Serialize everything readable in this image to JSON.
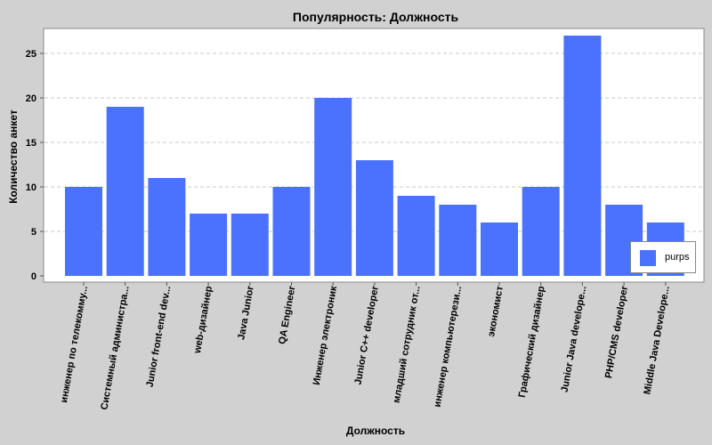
{
  "chart_data": {
    "type": "bar",
    "title": "Популярность: Должность",
    "xlabel": "Должность",
    "ylabel": "Количество анкет",
    "ylim": [
      0,
      27.8
    ],
    "yticks": [
      0,
      5,
      10,
      15,
      20,
      25
    ],
    "grid": true,
    "legend_position": "bottom-right",
    "bar_color": "#4a72ff",
    "categories": [
      "инженер по телекомму...",
      "Системный администра...",
      "Junior front-end dev...",
      "web-дизайнер",
      "Java Junior",
      "QA Engineer",
      "Инженер электроник",
      "Junior C++ developer",
      "младший сотрудник от...",
      "инженер компьютерези...",
      "экономист",
      "Графический дизайнер",
      "Junior Java develope...",
      "PHP/CMS developer",
      "Middle Java Develope..."
    ],
    "series": [
      {
        "name": "purps",
        "values": [
          10,
          19,
          11,
          7,
          7,
          10,
          20,
          13,
          9,
          8,
          6,
          10,
          27,
          8,
          6
        ]
      }
    ]
  }
}
